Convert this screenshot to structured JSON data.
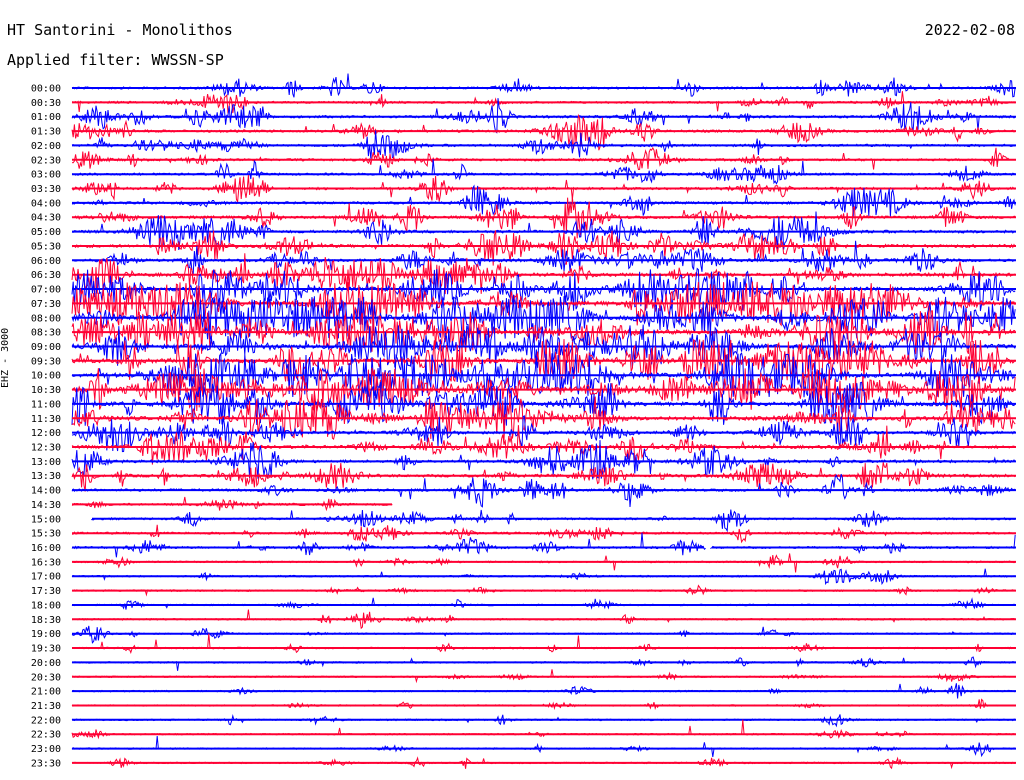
{
  "header": {
    "station": "HT Santorini - Monolithos",
    "date": "2022-02-08",
    "filter": "Applied filter: WWSSN-SP"
  },
  "chart_data": {
    "type": "line",
    "subtype": "helicorder",
    "channel_label": "EHZ - 3000",
    "time_labels": [
      "00:00",
      "00:30",
      "01:00",
      "01:30",
      "02:00",
      "02:30",
      "03:00",
      "03:30",
      "04:00",
      "04:30",
      "05:00",
      "05:30",
      "06:00",
      "06:30",
      "07:00",
      "07:30",
      "08:00",
      "08:30",
      "09:00",
      "09:30",
      "10:00",
      "10:30",
      "11:00",
      "11:30",
      "12:00",
      "12:30",
      "13:00",
      "13:30",
      "14:00",
      "14:30",
      "15:00",
      "15:30",
      "16:00",
      "16:30",
      "17:00",
      "17:30",
      "18:00",
      "18:30",
      "19:00",
      "19:30",
      "20:00",
      "20:30",
      "21:00",
      "21:30",
      "22:00",
      "22:30",
      "23:00",
      "23:30"
    ],
    "trace_colors": [
      "#0000ff",
      "#ff0033"
    ],
    "activity_level": [
      0.35,
      0.3,
      0.45,
      0.4,
      0.4,
      0.35,
      0.35,
      0.4,
      0.45,
      0.5,
      0.55,
      0.6,
      0.55,
      0.7,
      0.8,
      0.95,
      1.0,
      1.0,
      1.0,
      1.0,
      1.0,
      0.95,
      0.9,
      0.85,
      0.6,
      0.6,
      0.55,
      0.55,
      0.45,
      0.35,
      0.3,
      0.3,
      0.3,
      0.15,
      0.15,
      0.15,
      0.12,
      0.15,
      0.12,
      0.12,
      0.12,
      0.1,
      0.1,
      0.1,
      0.1,
      0.1,
      0.1,
      0.08
    ],
    "data_gaps": [
      {
        "row": "14:30",
        "from_fraction": 0.34,
        "to_fraction": 1.0
      },
      {
        "row": "15:00",
        "from_fraction": 0.0,
        "to_fraction": 0.02
      },
      {
        "row": "16:00",
        "from_fraction": 0.672,
        "to_fraction": 0.676
      }
    ]
  }
}
